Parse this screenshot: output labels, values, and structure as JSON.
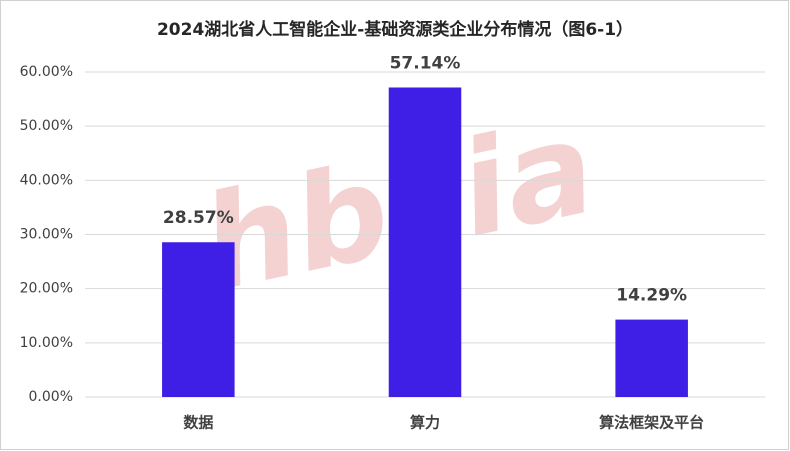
{
  "chart_data": {
    "type": "bar",
    "title": "2024湖北省人工智能企业-基础资源类企业分布情况（图6-1）",
    "categories": [
      "数据",
      "算力",
      "算法框架及平台"
    ],
    "values": [
      28.57,
      57.14,
      14.29
    ],
    "value_labels": [
      "28.57%",
      "57.14%",
      "14.29%"
    ],
    "color": "#3f1fe6",
    "ylim": [
      0,
      60
    ],
    "yticks": [
      {
        "value": 0,
        "label": "0.00%"
      },
      {
        "value": 10,
        "label": "10.00%"
      },
      {
        "value": 20,
        "label": "20.00%"
      },
      {
        "value": 30,
        "label": "30.00%"
      },
      {
        "value": 40,
        "label": "40.00%"
      },
      {
        "value": 50,
        "label": "50.00%"
      },
      {
        "value": 60,
        "label": "60.00%"
      }
    ],
    "grid": true,
    "watermark": "hbsia"
  }
}
